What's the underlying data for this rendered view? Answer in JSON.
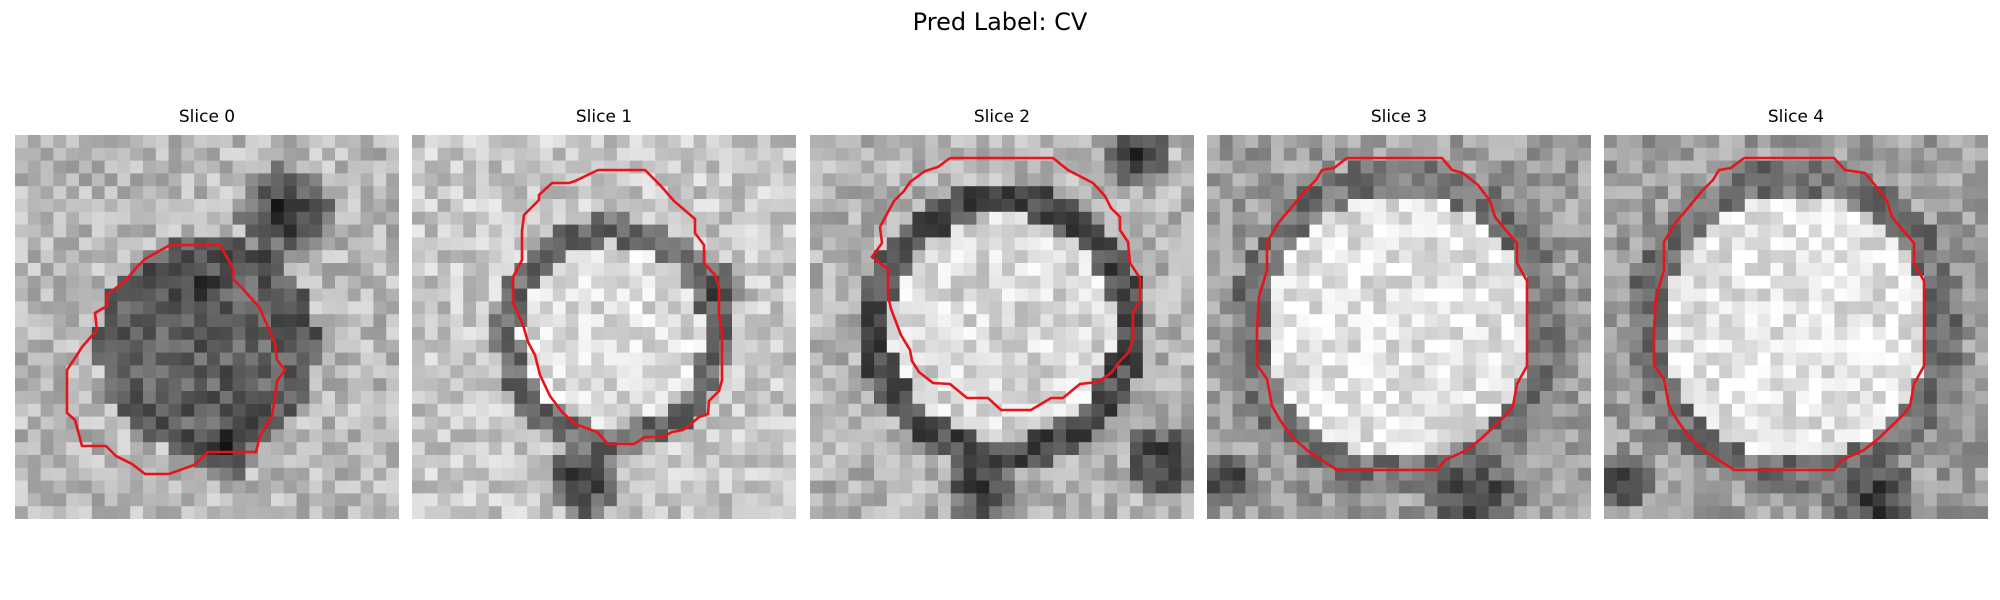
{
  "figure": {
    "title": "Pred Label: CV"
  },
  "slices": [
    {
      "title": "Slice 0",
      "contour_color": "#e8141b"
    },
    {
      "title": "Slice 1",
      "contour_color": "#e8141b"
    },
    {
      "title": "Slice 2",
      "contour_color": "#e8141b"
    },
    {
      "title": "Slice 3",
      "contour_color": "#e8141b"
    },
    {
      "title": "Slice 4",
      "contour_color": "#e8141b"
    }
  ],
  "colors": {
    "background": "#ffffff",
    "contour": "#e8141b"
  }
}
